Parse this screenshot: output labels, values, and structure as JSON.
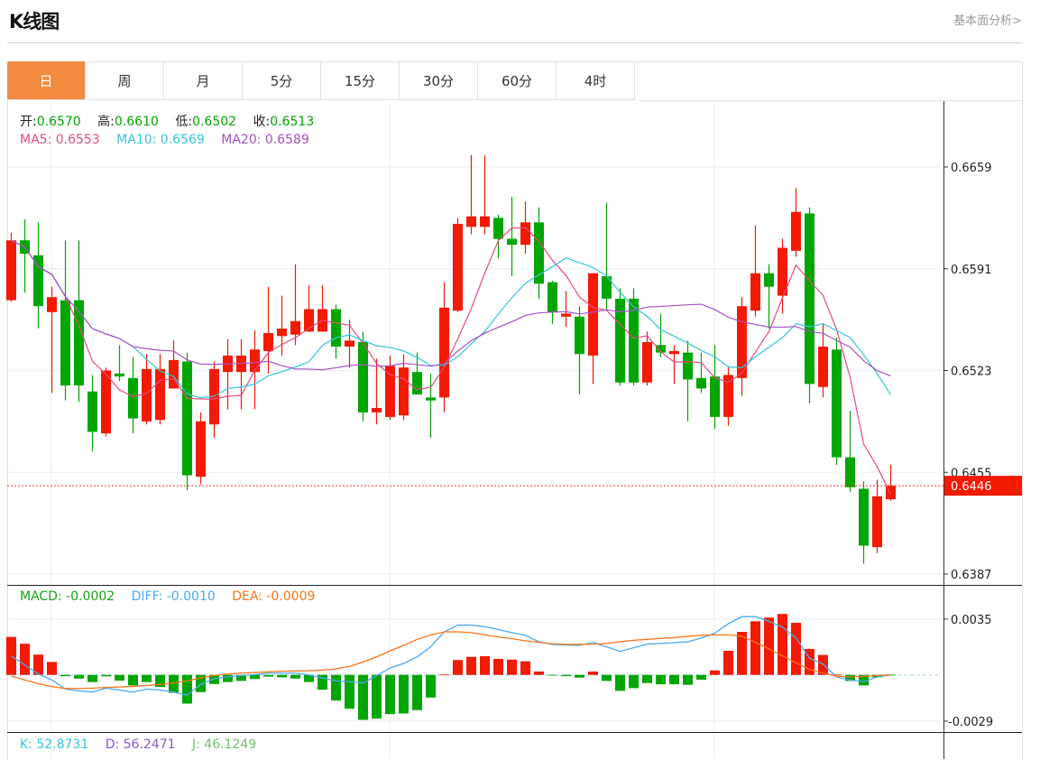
{
  "header": {
    "title": "K线图",
    "link": "基本面分析>"
  },
  "tabs": [
    {
      "label": "日",
      "active": true
    },
    {
      "label": "周"
    },
    {
      "label": "月"
    },
    {
      "label": "5分"
    },
    {
      "label": "15分"
    },
    {
      "label": "30分"
    },
    {
      "label": "60分"
    },
    {
      "label": "4时"
    }
  ],
  "legend": {
    "ohlc": {
      "open_label": "开:",
      "open": "0.6570",
      "high_label": "高:",
      "high": "0.6610",
      "low_label": "低:",
      "low": "0.6502",
      "close_label": "收:",
      "close": "0.6513"
    },
    "ma": {
      "ma5": "MA5: 0.6553",
      "ma10": "MA10: 0.6569",
      "ma20": "MA20: 0.6589"
    },
    "macd": {
      "macd": "MACD: -0.0002",
      "diff": "DIFF: -0.0010",
      "dea": "DEA: -0.0009"
    },
    "kdj": {
      "k": "K: 52.8731",
      "d": "D: 56.2471",
      "j": "J: 46.1249"
    }
  },
  "colors": {
    "up": "#f21a00",
    "down": "#02a602",
    "ma5": "#e84a7f",
    "ma10": "#34c6dc",
    "ma20": "#a652c4",
    "diff": "#4ea9f2",
    "dea": "#f7741b",
    "accent": "#f38b40",
    "k": "#37c4de",
    "d": "#8a5cc9",
    "j": "#71c171"
  },
  "chart_data": {
    "type": "candlestick",
    "price_axis": {
      "ticks": [
        "0.6659",
        "0.6591",
        "0.6523",
        "0.6455",
        "0.6387"
      ],
      "range": [
        0.638,
        0.67
      ]
    },
    "last_price": "0.6446",
    "ma_periods": [
      5,
      10,
      20
    ],
    "ohlc": [
      [
        0.657,
        0.6615,
        0.6569,
        0.661
      ],
      [
        0.661,
        0.6624,
        0.6575,
        0.6601
      ],
      [
        0.66,
        0.6622,
        0.6551,
        0.6566
      ],
      [
        0.6562,
        0.6579,
        0.6508,
        0.6572
      ],
      [
        0.657,
        0.661,
        0.6503,
        0.6513
      ],
      [
        0.657,
        0.661,
        0.6502,
        0.6513
      ],
      [
        0.6509,
        0.652,
        0.6469,
        0.6482
      ],
      [
        0.6481,
        0.6525,
        0.6479,
        0.6523
      ],
      [
        0.6521,
        0.654,
        0.6516,
        0.6519
      ],
      [
        0.6518,
        0.6532,
        0.6481,
        0.6491
      ],
      [
        0.6489,
        0.6534,
        0.6487,
        0.6524
      ],
      [
        0.649,
        0.6534,
        0.6487,
        0.6524
      ],
      [
        0.6511,
        0.6543,
        0.6511,
        0.653
      ],
      [
        0.6529,
        0.6535,
        0.6443,
        0.6453
      ],
      [
        0.6452,
        0.6495,
        0.6447,
        0.6489
      ],
      [
        0.6487,
        0.6529,
        0.6478,
        0.6524
      ],
      [
        0.6522,
        0.6544,
        0.6497,
        0.6533
      ],
      [
        0.6522,
        0.6544,
        0.6497,
        0.6533
      ],
      [
        0.6522,
        0.655,
        0.6497,
        0.6537
      ],
      [
        0.6536,
        0.6579,
        0.6521,
        0.6548
      ],
      [
        0.6546,
        0.6573,
        0.6533,
        0.6551
      ],
      [
        0.6547,
        0.6594,
        0.654,
        0.6556
      ],
      [
        0.6549,
        0.658,
        0.6549,
        0.6564
      ],
      [
        0.6549,
        0.658,
        0.6549,
        0.6564
      ],
      [
        0.6564,
        0.6567,
        0.6531,
        0.6539
      ],
      [
        0.6539,
        0.6557,
        0.6525,
        0.6543
      ],
      [
        0.6542,
        0.6549,
        0.6489,
        0.6495
      ],
      [
        0.6495,
        0.6531,
        0.6487,
        0.6498
      ],
      [
        0.6492,
        0.6533,
        0.649,
        0.6526
      ],
      [
        0.6493,
        0.6534,
        0.649,
        0.6525
      ],
      [
        0.6522,
        0.6535,
        0.6507,
        0.6507
      ],
      [
        0.6505,
        0.6521,
        0.6478,
        0.6503
      ],
      [
        0.6505,
        0.6582,
        0.6495,
        0.6565
      ],
      [
        0.6563,
        0.6625,
        0.6562,
        0.6621
      ],
      [
        0.6619,
        0.6667,
        0.6614,
        0.6626
      ],
      [
        0.6619,
        0.6667,
        0.6614,
        0.6626
      ],
      [
        0.6625,
        0.6627,
        0.6598,
        0.6611
      ],
      [
        0.6611,
        0.6639,
        0.6586,
        0.6607
      ],
      [
        0.6607,
        0.6636,
        0.6601,
        0.6622
      ],
      [
        0.6622,
        0.6632,
        0.6571,
        0.6581
      ],
      [
        0.6582,
        0.6583,
        0.6554,
        0.6562
      ],
      [
        0.6559,
        0.6576,
        0.6552,
        0.6561
      ],
      [
        0.6559,
        0.6566,
        0.6507,
        0.6534
      ],
      [
        0.6533,
        0.6588,
        0.6514,
        0.6588
      ],
      [
        0.6586,
        0.6635,
        0.6563,
        0.6571
      ],
      [
        0.6571,
        0.6578,
        0.6513,
        0.6515
      ],
      [
        0.6571,
        0.6578,
        0.6513,
        0.6515
      ],
      [
        0.6515,
        0.6549,
        0.6513,
        0.6542
      ],
      [
        0.654,
        0.6561,
        0.6532,
        0.6535
      ],
      [
        0.6534,
        0.654,
        0.6514,
        0.6536
      ],
      [
        0.6535,
        0.6543,
        0.6489,
        0.6517
      ],
      [
        0.6518,
        0.6535,
        0.6508,
        0.6511
      ],
      [
        0.6519,
        0.654,
        0.6484,
        0.6492
      ],
      [
        0.6492,
        0.6526,
        0.6486,
        0.652
      ],
      [
        0.6518,
        0.6572,
        0.6506,
        0.6566
      ],
      [
        0.6563,
        0.662,
        0.6559,
        0.6588
      ],
      [
        0.6588,
        0.6594,
        0.6551,
        0.6579
      ],
      [
        0.6573,
        0.6611,
        0.6561,
        0.6605
      ],
      [
        0.6603,
        0.6645,
        0.6599,
        0.6629
      ],
      [
        0.6628,
        0.6632,
        0.6501,
        0.6514
      ],
      [
        0.6512,
        0.6554,
        0.6505,
        0.6539
      ],
      [
        0.6537,
        0.6545,
        0.646,
        0.6465
      ],
      [
        0.6465,
        0.6496,
        0.6442,
        0.6445
      ],
      [
        0.6444,
        0.6449,
        0.6394,
        0.6406
      ],
      [
        0.6405,
        0.645,
        0.6401,
        0.6439
      ],
      [
        0.6437,
        0.646,
        0.6436,
        0.6446
      ]
    ],
    "macd_axis": {
      "ticks": [
        "0.0035",
        "-0.0029"
      ]
    },
    "macd": [
      0.00238,
      0.00195,
      0.00127,
      0.00081,
      -8e-05,
      -0.00023,
      -0.00045,
      -9e-05,
      -0.00036,
      -0.00066,
      -0.00045,
      -0.00076,
      -0.00113,
      -0.0018,
      -0.00108,
      -0.00057,
      -0.00045,
      -0.00038,
      -0.00026,
      -0.00011,
      -0.00015,
      -0.00023,
      -0.00045,
      -0.00093,
      -0.00161,
      -0.00212,
      -0.00282,
      -0.00274,
      -0.00246,
      -0.00242,
      -0.00221,
      -0.00142,
      2e-05,
      0.00093,
      0.00113,
      0.00117,
      0.001,
      0.00096,
      0.00085,
      0.00021,
      -4e-05,
      -8e-05,
      -0.00017,
      0.00021,
      -0.00038,
      -0.001,
      -0.00083,
      -0.00051,
      -0.00059,
      -0.00059,
      -0.00062,
      -0.0003,
      0.00028,
      0.00151,
      0.0027,
      0.00336,
      0.00359,
      0.00382,
      0.00327,
      0.00163,
      0.00125,
      2e-05,
      -0.00038,
      -0.00066,
      -0.00015,
      -2e-05
    ],
    "diff": [
      0.00119,
      0.00062,
      6e-05,
      -0.00032,
      -0.00089,
      -0.001,
      -0.00108,
      -0.00083,
      -0.00095,
      -0.00108,
      -0.00089,
      -0.00095,
      -0.00108,
      -0.00127,
      -0.0006,
      -0.00023,
      -0.00013,
      -4e-05,
      2e-05,
      0.00011,
      0.00011,
      0.00011,
      0,
      -0.00019,
      -0.00038,
      -0.00042,
      -0.00051,
      -4e-05,
      0.00043,
      0.00072,
      0.00113,
      0.00176,
      0.0027,
      0.00312,
      0.00312,
      0.00302,
      0.00284,
      0.00265,
      0.00248,
      0.00208,
      0.00191,
      0.00187,
      0.00185,
      0.00204,
      0.00176,
      0.00147,
      0.0017,
      0.00193,
      0.00197,
      0.00202,
      0.00208,
      0.00231,
      0.00261,
      0.00321,
      0.00365,
      0.00365,
      0.00336,
      0.00299,
      0.00232,
      0.00104,
      0.00068,
      -0.00013,
      -0.00032,
      -0.00042,
      -0.00013,
      0
    ],
    "dea": [
      -8e-05,
      -0.00032,
      -0.00055,
      -0.00074,
      -0.00085,
      -0.00085,
      -0.00083,
      -0.00079,
      -0.00076,
      -0.00072,
      -0.00066,
      -0.0006,
      -0.00051,
      -0.00038,
      -0.00019,
      -4e-05,
      6e-05,
      0.00011,
      0.00015,
      0.00019,
      0.00023,
      0.00025,
      0.00026,
      0.0003,
      0.00038,
      0.00053,
      0.00081,
      0.00113,
      0.00151,
      0.00185,
      0.00223,
      0.00251,
      0.0027,
      0.0027,
      0.00265,
      0.00251,
      0.00238,
      0.00227,
      0.00214,
      0.00204,
      0.00195,
      0.00191,
      0.00191,
      0.00193,
      0.00197,
      0.00208,
      0.00217,
      0.00223,
      0.00229,
      0.00234,
      0.00242,
      0.00248,
      0.00251,
      0.00251,
      0.00242,
      0.00204,
      0.00163,
      0.00119,
      0.00076,
      0.00034,
      0.00011,
      -9e-05,
      -0.00013,
      -9e-05,
      -4e-05,
      0
    ]
  }
}
